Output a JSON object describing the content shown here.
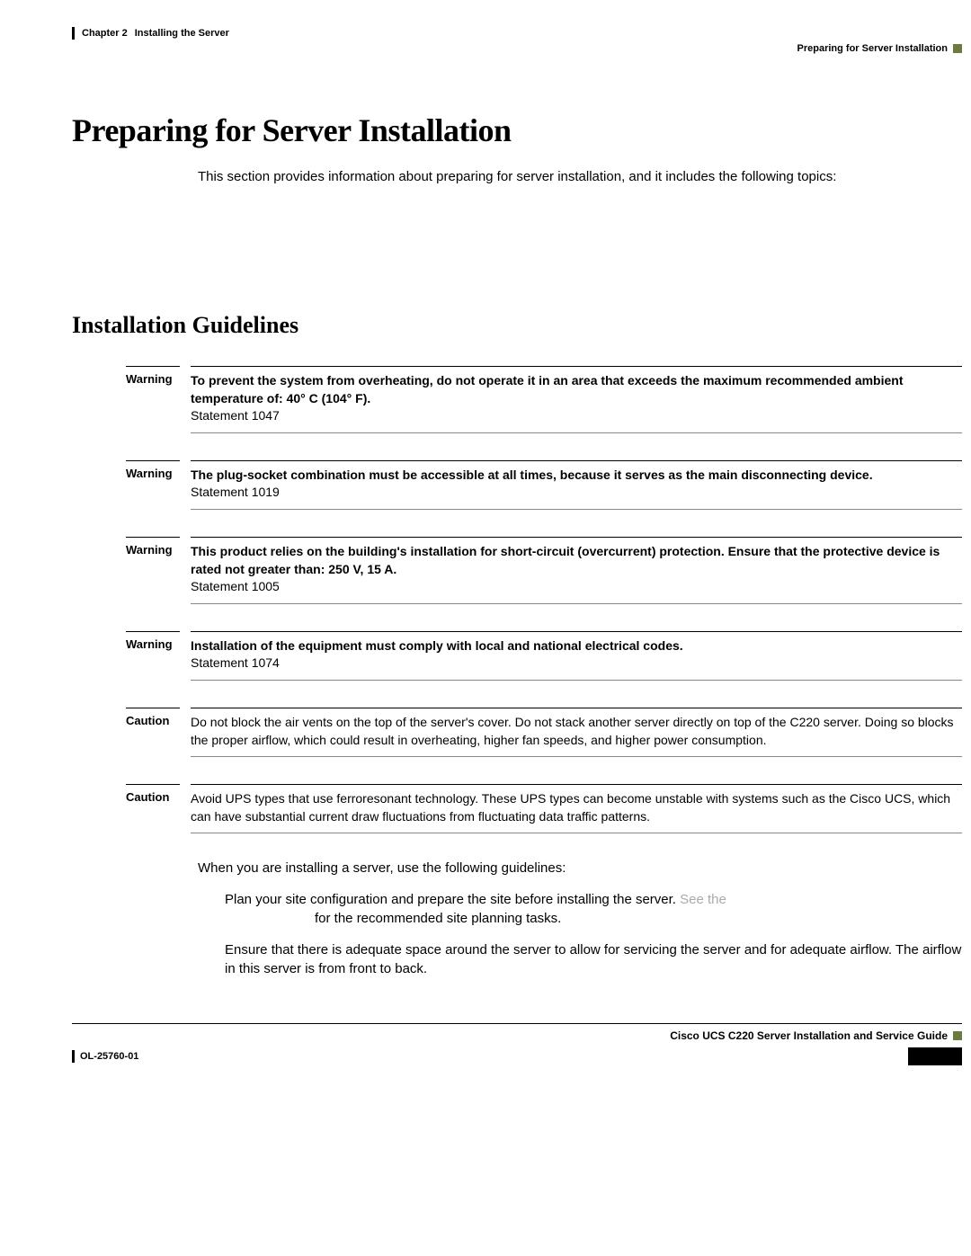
{
  "header": {
    "chapter": "Chapter 2",
    "section": "Installing the Server",
    "breadcrumb": "Preparing for Server Installation"
  },
  "mainTitle": "Preparing for Server Installation",
  "introText": "This section provides information about preparing for server installation, and it includes the following topics:",
  "sectionTitle": "Installation Guidelines",
  "notices": [
    {
      "label": "Warning",
      "boldText": "To prevent the system from overheating, do not operate it in an area that exceeds the maximum recommended ambient temperature of: 40° C (104° F).",
      "statement": "Statement 1047"
    },
    {
      "label": "Warning",
      "boldText": "The plug-socket combination must be accessible at all times, because it serves as the main disconnecting device.",
      "statement": "Statement 1019"
    },
    {
      "label": "Warning",
      "boldText": "This product relies on the building's installation for short-circuit (overcurrent) protection. Ensure that the protective device is rated not greater than: 250 V, 15 A.",
      "statement": "Statement 1005"
    },
    {
      "label": "Warning",
      "boldText": "Installation of the equipment must comply with local and national electrical codes.",
      "statement": "Statement 1074"
    },
    {
      "label": "Caution",
      "plainText": "Do not block the air vents on the top of the server's cover. Do not stack another server directly on top of the C220 server. Doing so blocks the proper airflow, which could result in overheating, higher fan speeds, and higher power consumption."
    },
    {
      "label": "Caution",
      "plainText": "Avoid UPS types that use ferroresonant technology. These UPS types can become unstable with systems such as the Cisco UCS, which can have substantial current draw fluctuations from fluctuating data traffic patterns."
    }
  ],
  "guidelinesIntro": "When you are installing a server, use the following guidelines:",
  "bullets": [
    {
      "text": "Plan your site configuration and prepare the site before installing the server.",
      "linkText": " See the",
      "continuation": "for the recommended site planning tasks."
    },
    {
      "text": "Ensure that there is adequate space around the server to allow for servicing the server and for adequate airflow. The airflow in this server is from front to back."
    }
  ],
  "footer": {
    "guideTitle": "Cisco UCS C220 Server Installation and Service Guide",
    "docNumber": "OL-25760-01"
  }
}
